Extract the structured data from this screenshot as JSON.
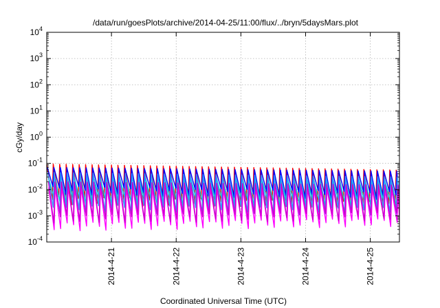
{
  "chart_data": {
    "type": "line",
    "title": "/data/run/goesPlots/archive/2014-04-25/11:00/flux/../bryn/5daysMars.plot",
    "xlabel": "Coordinated Universal Time (UTC)",
    "ylabel": "cGy/day",
    "yscale": "log",
    "ylim": [
      0.0001,
      10000
    ],
    "xlim": [
      0.0,
      5.45
    ],
    "x_unit_note_omitted": true,
    "x_ticks": [
      {
        "value": 1.0,
        "label": "2014-4-21"
      },
      {
        "value": 2.0,
        "label": "2014-4-22"
      },
      {
        "value": 3.0,
        "label": "2014-4-23"
      },
      {
        "value": 4.0,
        "label": "2014-4-24"
      },
      {
        "value": 5.0,
        "label": "2014-4-25"
      }
    ],
    "y_ticks": [
      {
        "value": 0.0001,
        "base": "10",
        "exp": "-4"
      },
      {
        "value": 0.001,
        "base": "10",
        "exp": "-3"
      },
      {
        "value": 0.01,
        "base": "10",
        "exp": "-2"
      },
      {
        "value": 0.1,
        "base": "10",
        "exp": "-1"
      },
      {
        "value": 1,
        "base": "10",
        "exp": "0"
      },
      {
        "value": 10,
        "base": "10",
        "exp": "1"
      },
      {
        "value": 100,
        "base": "10",
        "exp": "2"
      },
      {
        "value": 1000,
        "base": "10",
        "exp": "3"
      },
      {
        "value": 10000,
        "base": "10",
        "exp": "4"
      }
    ],
    "grid": true,
    "legend": "none",
    "sawtooth_period_days": 0.1,
    "series": [
      {
        "color": "#ff0000",
        "peak": 0.095,
        "trough": 0.004,
        "peak_end": 0.055,
        "trough_end": 0.0025,
        "phase": 0.0
      },
      {
        "color": "#0000ff",
        "peak": 0.07,
        "trough": 0.01,
        "peak_end": 0.05,
        "trough_end": 0.006,
        "phase": 0.01
      },
      {
        "color": "#00cccc",
        "peak": 0.035,
        "trough": 0.004,
        "peak_end": 0.025,
        "trough_end": 0.003,
        "phase": 0.02
      },
      {
        "color": "#3399ff",
        "peak": 0.045,
        "trough": 0.002,
        "peak_end": 0.03,
        "trough_end": 0.0015,
        "phase": 0.015
      },
      {
        "color": "#ff00ff",
        "peak": 0.012,
        "trough": 0.0004,
        "peak_end": 0.01,
        "trough_end": 0.0006,
        "phase": 0.03
      },
      {
        "color": "#cc00cc",
        "peak": 0.02,
        "trough": 0.0008,
        "peak_end": 0.015,
        "trough_end": 0.001,
        "phase": 0.025
      }
    ]
  }
}
